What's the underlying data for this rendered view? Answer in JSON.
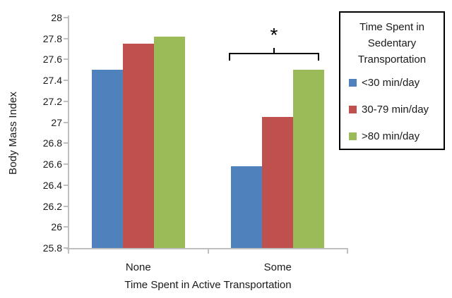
{
  "chart_data": {
    "type": "bar",
    "categories": [
      "None",
      "Some"
    ],
    "series": [
      {
        "name": "<30 min/day",
        "color": "#4F81BD",
        "values": [
          27.5,
          26.58
        ]
      },
      {
        "name": "30-79 min/day",
        "color": "#C0504D",
        "values": [
          27.75,
          27.05
        ]
      },
      {
        "name": ">80 min/day",
        "color": "#9BBB59",
        "values": [
          27.82,
          27.5
        ]
      }
    ],
    "xlabel": "Time Spent in Active Transportation",
    "ylabel": "Body Mass Index",
    "ylim": [
      25.8,
      28
    ],
    "yticks": [
      28,
      27.8,
      27.6,
      27.4,
      27.2,
      27,
      26.8,
      26.6,
      26.4,
      26.2,
      26,
      25.8
    ],
    "ytick_labels": [
      "28",
      "27.8",
      "27.6",
      "27.4",
      "27.2",
      "27",
      "26.8",
      "26.6",
      "26.4",
      "26.2",
      "26",
      "25.8"
    ],
    "grid": false,
    "axis_color": "#BFBFBF",
    "legend": {
      "title": "Time Spent in Sedentary Transportation",
      "position": "right",
      "entries": [
        "<30 min/day",
        "30-79 min/day",
        ">80 min/day"
      ]
    },
    "annotation": {
      "symbol": "*",
      "category": "Some"
    }
  }
}
